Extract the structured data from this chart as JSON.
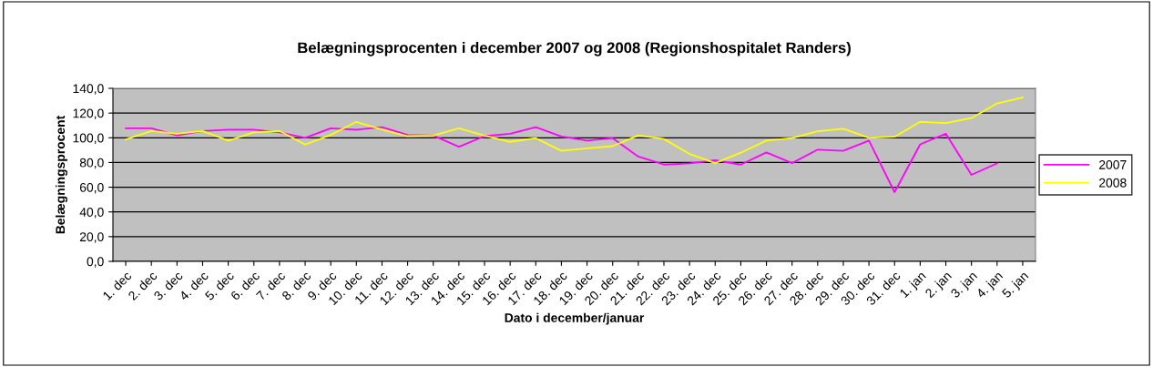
{
  "chart_data": {
    "type": "line",
    "title": "Belægningsprocenten i december 2007 og 2008 (Regionshospitalet Randers)",
    "xlabel": "Dato i december/januar",
    "ylabel": "Belægningsprocent",
    "categories": [
      "1. dec",
      "2. dec",
      "3. dec",
      "4. dec",
      "5. dec",
      "6. dec",
      "7. dec",
      "8. dec",
      "9. dec",
      "10. dec",
      "11. dec",
      "12. dec",
      "13. dec",
      "14. dec",
      "15. dec",
      "16. dec",
      "17. dec",
      "18. dec",
      "19. dec",
      "20. dec",
      "21. dec",
      "22. dec",
      "23. dec",
      "24. dec",
      "25. dec",
      "26. dec",
      "27. dec",
      "28. dec",
      "29. dec",
      "30. dec",
      "31. dec",
      "1. jan",
      "2. jan",
      "3. jan",
      "4. jan",
      "5. jan"
    ],
    "series": [
      {
        "name": "2007",
        "color": "#ff00ff",
        "values": [
          107.6,
          107.6,
          102,
          105.5,
          106.6,
          106.6,
          104.3,
          100,
          107.6,
          106.6,
          108.6,
          102.3,
          101.8,
          92.7,
          101.3,
          103.3,
          108.6,
          101,
          97.7,
          99.7,
          84.8,
          78.3,
          79.3,
          81.8,
          78.3,
          88.1,
          79.5,
          90.4,
          89.4,
          97.7,
          56,
          94.7,
          103.3,
          70,
          79.3,
          null
        ]
      },
      {
        "name": "2008",
        "color": "#ffff00",
        "values": [
          98.7,
          105.5,
          103.3,
          105.5,
          97.7,
          104.3,
          105.5,
          94.5,
          102.3,
          112.9,
          106.6,
          101.3,
          101.8,
          107.6,
          101.8,
          96.7,
          99.7,
          89.4,
          91.4,
          93.2,
          102,
          99,
          86.9,
          79.5,
          87.9,
          97.7,
          99.7,
          105.3,
          107.3,
          100,
          100.8,
          112.9,
          111.9,
          115.9,
          127.8,
          132.6
        ]
      }
    ],
    "ylim": [
      0,
      140
    ],
    "yticks": [
      {
        "value": 0,
        "label": "0,0"
      },
      {
        "value": 20,
        "label": "20,0"
      },
      {
        "value": 40,
        "label": "40,0"
      },
      {
        "value": 60,
        "label": "60,0"
      },
      {
        "value": 80,
        "label": "80,0"
      },
      {
        "value": 100,
        "label": "100,0"
      },
      {
        "value": 120,
        "label": "120,0"
      },
      {
        "value": 140,
        "label": "140,0"
      }
    ],
    "grid": "y",
    "legend": "right",
    "marker": "none",
    "line_style": "solid"
  }
}
